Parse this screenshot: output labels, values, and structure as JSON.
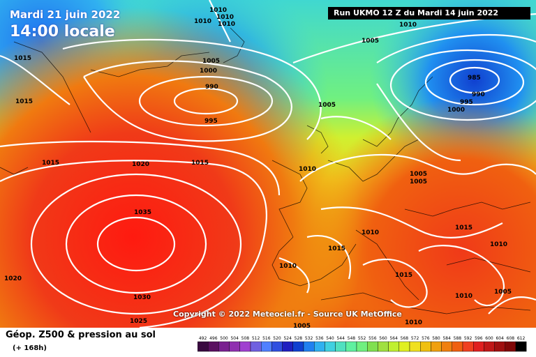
{
  "header": {
    "date_label": "Mardi 21 juin 2022",
    "time_label": "14:00 locale",
    "run_label": "Run UKMO 12 Z du Mardi 14 juin 2022"
  },
  "copyright": "Copyright © 2022 Meteociel.fr - Source UK MetOffice",
  "footer": {
    "title": "Géop. Z500 & pression au sol",
    "subtitle": "(+ 168h)"
  },
  "legend": {
    "values": [
      "492",
      "496",
      "500",
      "504",
      "508",
      "512",
      "516",
      "520",
      "524",
      "528",
      "532",
      "536",
      "540",
      "544",
      "548",
      "552",
      "556",
      "560",
      "564",
      "568",
      "572",
      "576",
      "580",
      "584",
      "588",
      "592",
      "596",
      "600",
      "604",
      "608",
      "612"
    ],
    "colors": [
      "#3a0a40",
      "#5a1060",
      "#7a2090",
      "#9030b0",
      "#a040d0",
      "#7060e0",
      "#5080ff",
      "#3050e0",
      "#2020c0",
      "#1040d0",
      "#2080f0",
      "#30b0f0",
      "#40d0e0",
      "#50e0c0",
      "#60f0a0",
      "#70f080",
      "#80e050",
      "#a0e040",
      "#c0f030",
      "#e0f020",
      "#f0e020",
      "#f0c010",
      "#f0a010",
      "#f08010",
      "#f06010",
      "#f04020",
      "#e02020",
      "#c01818",
      "#a01010",
      "#800808",
      "#000000"
    ]
  },
  "isobars": [
    {
      "label": "1010",
      "ref": "a"
    },
    {
      "label": "1010",
      "ref": "b"
    },
    {
      "label": "1010",
      "ref": "c"
    },
    {
      "label": "1010",
      "ref": "d"
    },
    {
      "label": "1010",
      "ref": "e"
    },
    {
      "label": "1005",
      "ref": "f"
    },
    {
      "label": "1015",
      "ref": "g"
    },
    {
      "label": "1015",
      "ref": "h"
    },
    {
      "label": "1005",
      "ref": "i"
    },
    {
      "label": "1000",
      "ref": "j"
    },
    {
      "label": "990",
      "ref": "k"
    },
    {
      "label": "995",
      "ref": "l"
    },
    {
      "label": "1005",
      "ref": "m"
    },
    {
      "label": "985",
      "ref": "n"
    },
    {
      "label": "990",
      "ref": "o"
    },
    {
      "label": "995",
      "ref": "p"
    },
    {
      "label": "1000",
      "ref": "q"
    },
    {
      "label": "1015",
      "ref": "r"
    },
    {
      "label": "1020",
      "ref": "s"
    },
    {
      "label": "1015",
      "ref": "t"
    },
    {
      "label": "1010",
      "ref": "u"
    },
    {
      "label": "1005",
      "ref": "v"
    },
    {
      "label": "1005",
      "ref": "w"
    },
    {
      "label": "1035",
      "ref": "x"
    },
    {
      "label": "1015",
      "ref": "y"
    },
    {
      "label": "1010",
      "ref": "z"
    },
    {
      "label": "1015",
      "ref": "aa"
    },
    {
      "label": "1010",
      "ref": "ab"
    },
    {
      "label": "1020",
      "ref": "ac"
    },
    {
      "label": "1010",
      "ref": "ad"
    },
    {
      "label": "1015",
      "ref": "ae"
    },
    {
      "label": "1030",
      "ref": "af"
    },
    {
      "label": "1010",
      "ref": "ag"
    },
    {
      "label": "1005",
      "ref": "ah"
    },
    {
      "label": "1025",
      "ref": "ai"
    },
    {
      "label": "1005",
      "ref": "aj"
    },
    {
      "label": "1010",
      "ref": "ak"
    }
  ]
}
